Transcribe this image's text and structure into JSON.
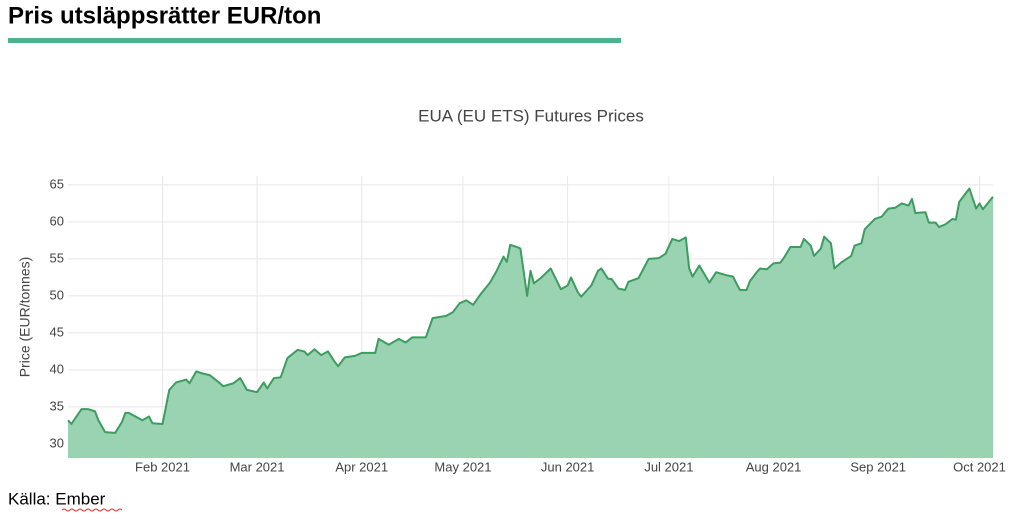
{
  "header": {
    "title": "Pris utsläppsrätter EUR/ton"
  },
  "chart_data": {
    "type": "area",
    "title": "EUA (EU ETS) Futures Prices",
    "y_label": "Price (EUR/tonnes)",
    "x": [
      3,
      4,
      7,
      9,
      11,
      12,
      14,
      17,
      19,
      20,
      21,
      25,
      27,
      28,
      31,
      33,
      35,
      38,
      39,
      41,
      43,
      45,
      48,
      49,
      52,
      54,
      56,
      59,
      61,
      62,
      64,
      66,
      68,
      71,
      73,
      74,
      76,
      78,
      80,
      82,
      83,
      85,
      88,
      90,
      94,
      95,
      98,
      101,
      103,
      105,
      109,
      111,
      115,
      117,
      119,
      121,
      123,
      125,
      128,
      130,
      132,
      133,
      134,
      136,
      137,
      139,
      140,
      141,
      143,
      146,
      149,
      151,
      152,
      154,
      155,
      158,
      160,
      161,
      163,
      164,
      166,
      168,
      169,
      172,
      175,
      178,
      180,
      182,
      184,
      186,
      187,
      188,
      190,
      193,
      195,
      198,
      200,
      202,
      204,
      205,
      207,
      208,
      210,
      212,
      214,
      215,
      217,
      220,
      221,
      223,
      224,
      226,
      227,
      229,
      230,
      232,
      235,
      236,
      238,
      239,
      242,
      244,
      246,
      248,
      250,
      252,
      253,
      254,
      257,
      258,
      260,
      261,
      263,
      265,
      266,
      267,
      269,
      270,
      272,
      273,
      274,
      277
    ],
    "series": [
      {
        "name": "EUA",
        "color": "#3d9c60",
        "fill": "#99d3b1",
        "values": [
          33.2,
          32.7,
          34.7,
          34.7,
          34.4,
          33.2,
          31.6,
          31.5,
          33,
          34.2,
          34.2,
          33.2,
          33.7,
          32.8,
          32.7,
          37.3,
          38.3,
          38.7,
          38.2,
          39.8,
          39.5,
          39.3,
          38.2,
          37.8,
          38.2,
          38.9,
          37.3,
          37,
          38.3,
          37.5,
          38.9,
          39,
          41.6,
          42.7,
          42.5,
          42,
          42.8,
          42,
          42.5,
          41.1,
          40.5,
          41.7,
          41.9,
          42.3,
          42.3,
          44.2,
          43.4,
          44.2,
          43.7,
          44.4,
          44.4,
          47,
          47.3,
          47.8,
          49,
          49.4,
          48.8,
          50.1,
          51.8,
          53.4,
          55.3,
          54.6,
          56.9,
          56.6,
          56.4,
          50,
          53.4,
          51.7,
          52.4,
          53.7,
          50.9,
          51.4,
          52.5,
          50.5,
          49.9,
          51.4,
          53.4,
          53.7,
          52.3,
          52.3,
          51,
          50.8,
          51.9,
          52.4,
          55,
          55.1,
          55.7,
          57.7,
          57.4,
          57.9,
          53.7,
          52.6,
          54.1,
          51.8,
          53.2,
          52.8,
          52.6,
          50.8,
          50.8,
          52,
          53.2,
          53.7,
          53.6,
          54.4,
          54.5,
          55.1,
          56.6,
          56.6,
          57.7,
          56.8,
          55.4,
          56.4,
          58,
          57.1,
          53.7,
          54.5,
          55.4,
          56.8,
          57.1,
          59,
          60.4,
          60.7,
          61.8,
          61.9,
          62.5,
          62.2,
          63.1,
          61.2,
          61.3,
          59.9,
          59.9,
          59.3,
          59.7,
          60.4,
          60.3,
          62.7,
          63.9,
          64.5,
          61.8,
          62.5,
          61.7,
          63.4
        ]
      }
    ],
    "xlim": [
      3,
      277
    ],
    "xticks": [
      {
        "value": 31,
        "label": "Feb 2021"
      },
      {
        "value": 59,
        "label": "Mar 2021"
      },
      {
        "value": 90,
        "label": "Apr 2021"
      },
      {
        "value": 120,
        "label": "May 2021"
      },
      {
        "value": 151,
        "label": "Jun 2021"
      },
      {
        "value": 181,
        "label": "Jul 2021"
      },
      {
        "value": 212,
        "label": "Aug 2021"
      },
      {
        "value": 243,
        "label": "Sep 2021"
      },
      {
        "value": 273,
        "label": "Oct 2021"
      }
    ],
    "ylim": [
      28.1,
      66.2
    ],
    "yticks": [
      30,
      35,
      40,
      45,
      50,
      55,
      60,
      65
    ],
    "grid": true
  },
  "footer": {
    "source": "Källa: Ember"
  }
}
